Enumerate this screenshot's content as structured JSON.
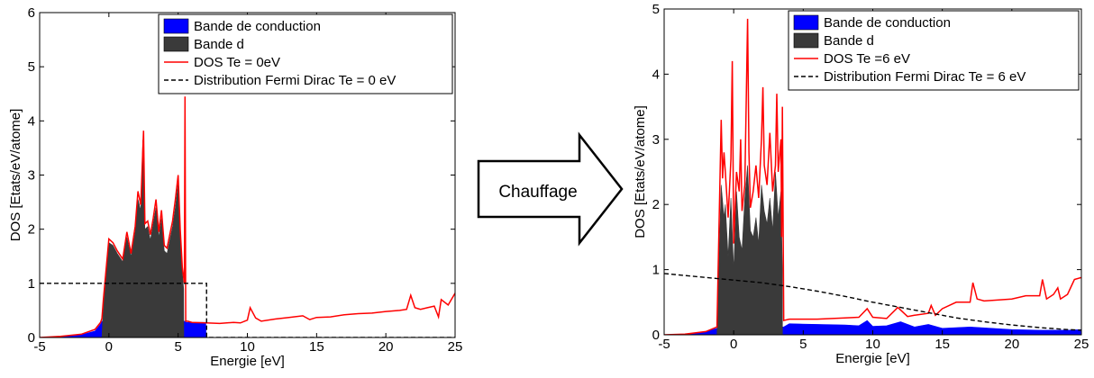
{
  "colors": {
    "conduction_band": "#0000ff",
    "d_band": "#3a3a3a",
    "dos_line": "#ff0000",
    "fermi_line": "#000000",
    "arrow_fill": "#ffffff",
    "arrow_stroke": "#000000"
  },
  "arrow": {
    "label": "Chauffage",
    "icon": "right-arrow-icon"
  },
  "chart_data": [
    {
      "type": "area",
      "title": "",
      "xlabel": "Energie [eV]",
      "ylabel": "DOS [Etats/eV/atome]",
      "xlim": [
        -5,
        25
      ],
      "ylim": [
        0,
        6
      ],
      "xticks": [
        -5,
        0,
        5,
        10,
        15,
        20,
        25
      ],
      "yticks": [
        0,
        1,
        2,
        3,
        4,
        5,
        6
      ],
      "grid": false,
      "legend_position": "top-right",
      "legend": [
        "Bande de conduction",
        "Bande d",
        "DOS Te = 0eV",
        "Distribution Fermi Dirac Te = 0 eV"
      ],
      "series": [
        {
          "name": "Bande de conduction",
          "style": "fill",
          "x": [
            -5,
            -3.5,
            -2,
            -1,
            -0.6,
            -0.5,
            5.5,
            5.6,
            7,
            7.01
          ],
          "y": [
            0,
            0.01,
            0.05,
            0.12,
            0.25,
            0.3,
            0.3,
            0.28,
            0.28,
            0
          ]
        },
        {
          "name": "Bande d",
          "style": "fill",
          "x": [
            -0.5,
            -0.4,
            0,
            0.3,
            0.6,
            1,
            1.3,
            1.6,
            1.9,
            2.1,
            2.3,
            2.45,
            2.6,
            2.8,
            3,
            3.2,
            3.4,
            3.6,
            3.8,
            4,
            4.2,
            4.4,
            4.6,
            4.8,
            5,
            5.15,
            5.3,
            5.4,
            5.41
          ],
          "y": [
            0,
            0.6,
            1.75,
            1.7,
            1.55,
            1.4,
            1.85,
            1.5,
            1.95,
            2.55,
            2.35,
            3.65,
            2.0,
            2.05,
            1.8,
            2.1,
            2.4,
            1.85,
            2.2,
            1.6,
            1.55,
            1.8,
            2.05,
            2.4,
            2.85,
            1.9,
            1.2,
            0.9,
            0
          ]
        },
        {
          "name": "DOS Te = 0eV",
          "style": "line",
          "x": [
            -5,
            -3.5,
            -2,
            -1,
            -0.6,
            -0.5,
            -0.4,
            0,
            0.3,
            0.6,
            1,
            1.3,
            1.6,
            1.9,
            2.1,
            2.3,
            2.5,
            2.6,
            2.8,
            3,
            3.2,
            3.4,
            3.6,
            3.8,
            4,
            4.2,
            4.4,
            4.6,
            4.8,
            5,
            5.15,
            5.3,
            5.45,
            5.5,
            5.55,
            5.7,
            6,
            7,
            8,
            9,
            9.5,
            10,
            10.2,
            10.6,
            11,
            12,
            13,
            14,
            14.5,
            15,
            16,
            17,
            18,
            19,
            20,
            21,
            21.5,
            21.8,
            22.1,
            22.5,
            23,
            23.5,
            23.8,
            24,
            24.5,
            25
          ],
          "y": [
            0,
            0.02,
            0.06,
            0.15,
            0.28,
            0.35,
            0.7,
            1.82,
            1.75,
            1.6,
            1.45,
            1.95,
            1.55,
            2.05,
            2.7,
            2.45,
            3.82,
            2.1,
            2.15,
            1.9,
            2.2,
            2.55,
            1.95,
            2.35,
            1.7,
            1.65,
            1.9,
            2.15,
            2.55,
            3.0,
            2.0,
            1.3,
            1.0,
            4.45,
            0.3,
            0.3,
            0.28,
            0.27,
            0.26,
            0.28,
            0.27,
            0.32,
            0.55,
            0.36,
            0.3,
            0.34,
            0.37,
            0.4,
            0.33,
            0.37,
            0.38,
            0.42,
            0.44,
            0.45,
            0.48,
            0.5,
            0.52,
            0.78,
            0.55,
            0.52,
            0.55,
            0.58,
            0.38,
            0.7,
            0.6,
            0.82
          ]
        },
        {
          "name": "Distribution Fermi Dirac Te = 0 eV",
          "style": "dashed",
          "x": [
            -5,
            7.05,
            7.06,
            25
          ],
          "y": [
            1,
            1,
            0,
            0
          ]
        }
      ]
    },
    {
      "type": "area",
      "title": "",
      "xlabel": "Energie [eV]",
      "ylabel": "DOS [Etats/eV/atome]",
      "xlim": [
        -5,
        25
      ],
      "ylim": [
        0,
        5
      ],
      "xticks": [
        -5,
        0,
        5,
        10,
        15,
        20,
        25
      ],
      "yticks": [
        0,
        1,
        2,
        3,
        4,
        5
      ],
      "grid": false,
      "legend_position": "top-right",
      "legend": [
        "Bande de conduction",
        "Bande d",
        "DOS Te =6 eV",
        "Distribution Fermi Dirac Te = 6 eV"
      ],
      "series": [
        {
          "name": "Bande de conduction",
          "style": "fill",
          "x": [
            -5,
            -3.5,
            -2,
            -1.2,
            -1,
            3.6,
            4,
            6,
            8,
            9,
            9.6,
            10,
            11,
            12,
            13,
            14,
            15,
            17,
            20,
            22,
            24,
            25
          ],
          "y": [
            0,
            0.01,
            0.05,
            0.1,
            0.12,
            0.12,
            0.17,
            0.16,
            0.15,
            0.14,
            0.22,
            0.13,
            0.14,
            0.2,
            0.12,
            0.16,
            0.1,
            0.12,
            0.08,
            0.07,
            0.07,
            0.08
          ]
        },
        {
          "name": "Bande d",
          "style": "fill",
          "x": [
            -1.2,
            -1.1,
            -0.9,
            -0.7,
            -0.6,
            -0.4,
            -0.2,
            0,
            0.2,
            0.4,
            0.6,
            0.8,
            1,
            1.2,
            1.4,
            1.6,
            1.8,
            2,
            2.2,
            2.4,
            2.6,
            2.8,
            3,
            3.2,
            3.4,
            3.5,
            3.51
          ],
          "y": [
            0,
            0.9,
            2.3,
            1.8,
            2.0,
            1.2,
            2.1,
            1.0,
            2.2,
            1.5,
            1.3,
            2.1,
            2.6,
            1.6,
            1.5,
            1.8,
            1.4,
            2.3,
            1.9,
            1.7,
            2.1,
            1.6,
            2.5,
            1.8,
            2.2,
            1.0,
            0
          ]
        },
        {
          "name": "DOS Te =6 eV",
          "style": "line",
          "x": [
            -5,
            -3.5,
            -2,
            -1.2,
            -1.1,
            -0.9,
            -0.8,
            -0.7,
            -0.6,
            -0.4,
            -0.2,
            -0.1,
            0,
            0.2,
            0.4,
            0.5,
            0.6,
            0.8,
            0.9,
            1,
            1.1,
            1.2,
            1.4,
            1.6,
            1.8,
            2,
            2.1,
            2.2,
            2.4,
            2.6,
            2.8,
            3,
            3.1,
            3.2,
            3.4,
            3.45,
            3.5,
            3.6,
            4,
            6,
            8,
            9,
            9.6,
            10,
            11,
            11.8,
            12.5,
            13,
            14,
            14.2,
            14.5,
            15,
            16,
            17,
            17.2,
            17.5,
            18,
            20,
            21,
            22,
            22.2,
            22.5,
            23,
            23.3,
            23.5,
            24,
            24.5,
            25
          ],
          "y": [
            0,
            0.01,
            0.05,
            0.12,
            1.2,
            3.3,
            2.4,
            2.8,
            2.5,
            1.8,
            2.7,
            4.2,
            1.4,
            2.5,
            2.2,
            3.0,
            1.9,
            2.3,
            3.6,
            4.85,
            2.8,
            1.95,
            2.2,
            2.6,
            2.1,
            3.0,
            3.8,
            2.6,
            2.3,
            3.1,
            2.2,
            2.6,
            3.7,
            2.5,
            3.0,
            1.5,
            3.5,
            0.22,
            0.24,
            0.24,
            0.26,
            0.27,
            0.4,
            0.27,
            0.25,
            0.42,
            0.28,
            0.3,
            0.33,
            0.45,
            0.3,
            0.4,
            0.5,
            0.5,
            0.8,
            0.55,
            0.52,
            0.55,
            0.6,
            0.6,
            0.85,
            0.55,
            0.62,
            0.72,
            0.55,
            0.62,
            0.85,
            0.88
          ]
        },
        {
          "name": "Distribution Fermi Dirac Te = 6 eV",
          "style": "dashed",
          "x": [
            -5,
            -2,
            0,
            2,
            4,
            6,
            8,
            10,
            12,
            14,
            16,
            18,
            20,
            22,
            24,
            25
          ],
          "y": [
            0.94,
            0.88,
            0.84,
            0.8,
            0.74,
            0.67,
            0.59,
            0.5,
            0.42,
            0.34,
            0.26,
            0.2,
            0.15,
            0.11,
            0.08,
            0.07
          ]
        }
      ]
    }
  ]
}
